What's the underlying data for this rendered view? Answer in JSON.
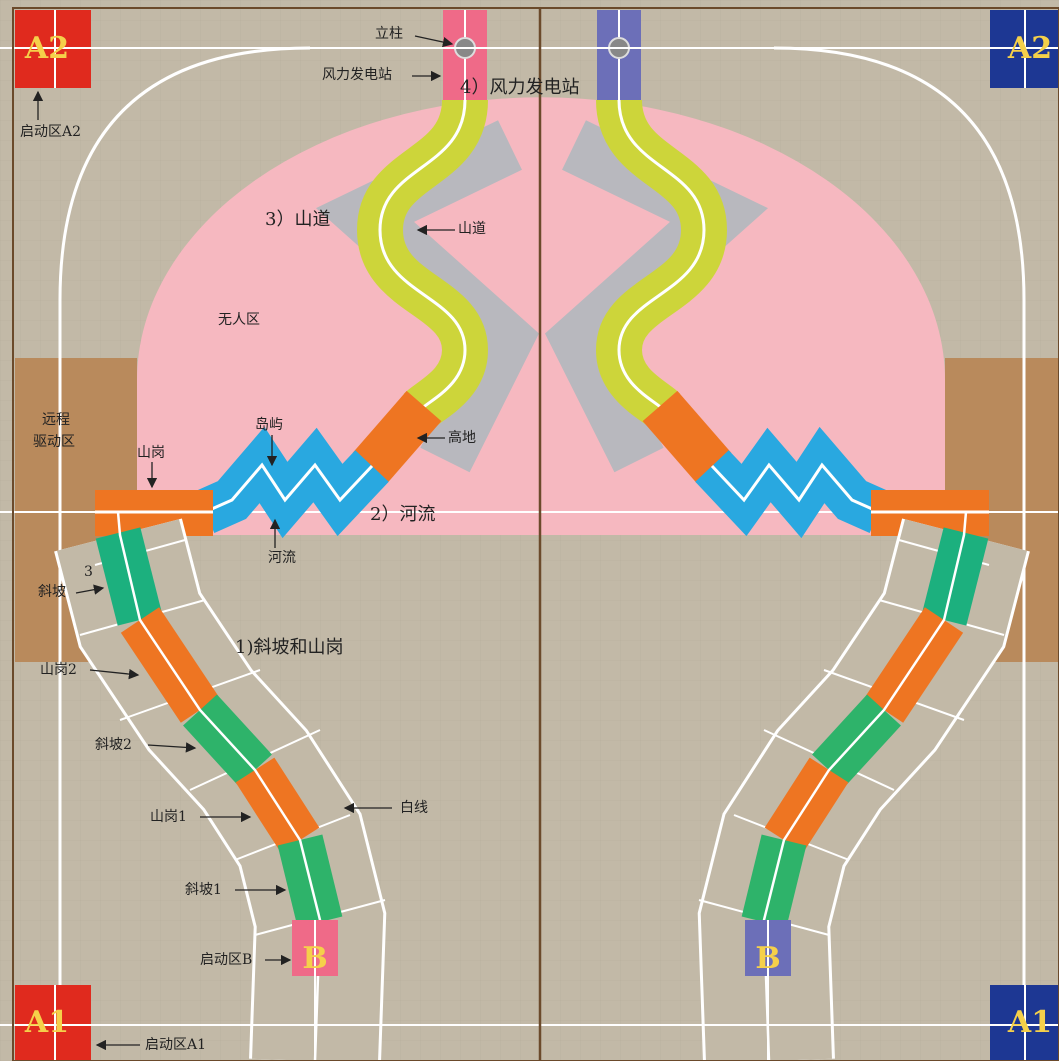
{
  "corners": {
    "top_left": "A2",
    "top_right": "A2",
    "bottom_left": "A1",
    "bottom_right": "A1"
  },
  "start_b": [
    "B",
    "B"
  ],
  "section_titles": [
    "4）风力发电站",
    "3）山道",
    "2）河流",
    "1)斜坡和山岗"
  ],
  "labels": {
    "pillar": "立柱",
    "wind_station": "风力发电站",
    "start_a2": "启动区A2",
    "mountain_road": "山道",
    "no_man_zone": "无人区",
    "remote_zone_1": "远程",
    "remote_zone_2": "驱动区",
    "ridge": "山岗",
    "island": "岛屿",
    "highland": "高地",
    "river": "河流",
    "slope_3_num": "3",
    "slope_3": "斜坡",
    "ridge_2": "山岗2",
    "slope_2": "斜坡2",
    "ridge_1": "山岗1",
    "white_line": "白线",
    "slope_1": "斜坡1",
    "start_b": "启动区B",
    "start_a1": "启动区A1"
  }
}
